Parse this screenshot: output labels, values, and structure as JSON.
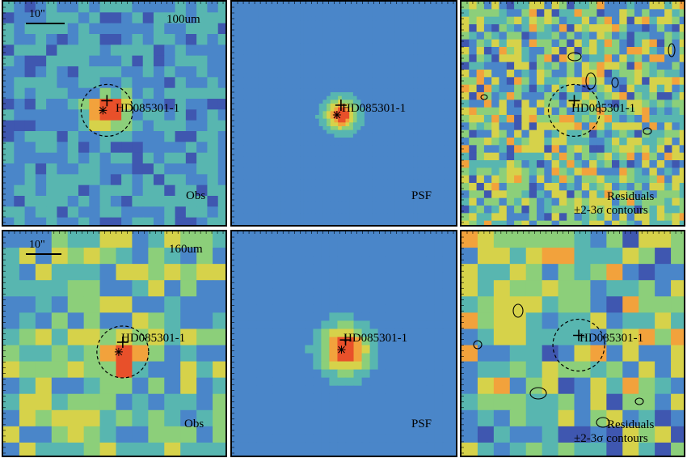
{
  "figure": {
    "rows": [
      {
        "band": "100um",
        "scale": "10\"",
        "panels": {
          "obs": {
            "label": "Obs",
            "source": "HD085301-1"
          },
          "psf": {
            "label": "PSF",
            "source": "HD085301-1"
          },
          "res": {
            "label_line1": "Residuals",
            "label_line2": "±2-3σ contours",
            "source": "HD085301-1"
          }
        }
      },
      {
        "band": "160um",
        "scale": "10\"",
        "panels": {
          "obs": {
            "label": "Obs",
            "source": "HD085301-1"
          },
          "psf": {
            "label": "PSF",
            "source": "HD085301-1"
          },
          "res": {
            "label_line1": "Residuals",
            "label_line2": "±2-3σ contours",
            "source": "HD085301-1"
          }
        }
      }
    ],
    "colormap": [
      "#3b1d8f",
      "#3f57b0",
      "#4a86c9",
      "#58b6b0",
      "#8ccf7a",
      "#d6d24a",
      "#f2a23c",
      "#e8502a"
    ],
    "marker_colors": {
      "cross": "#000000",
      "circle": "#000000"
    }
  }
}
